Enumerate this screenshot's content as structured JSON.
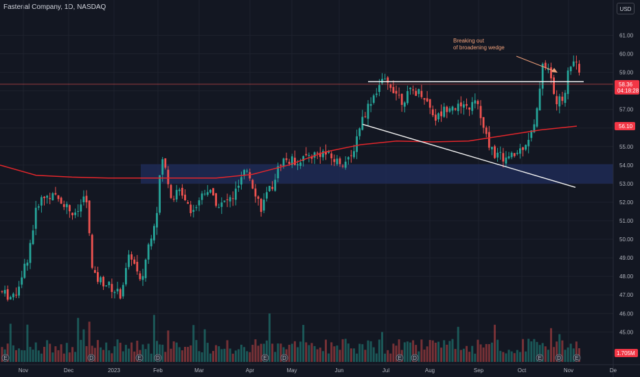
{
  "header": {
    "title": "Fastenal Company, 1D, NASDAQ",
    "currency_button": "USD"
  },
  "colors": {
    "background": "#131722",
    "up": "#26a69a",
    "down": "#ef5350",
    "ma_line": "#e3262b",
    "zone": "#1f2a55",
    "trendline": "#f2f2f2",
    "annotation": "#f0a07a",
    "price_label_bg": "#f23645"
  },
  "chart_data": {
    "type": "candlestick",
    "y_ticks": [
      "61.00",
      "60.00",
      "59.00",
      "58.00",
      "57.00",
      "56.00",
      "55.00",
      "54.00",
      "53.00",
      "52.00",
      "51.00",
      "50.00",
      "49.00",
      "48.00",
      "47.00",
      "46.00",
      "45.00"
    ],
    "x_ticks": [
      "Nov",
      "Dec",
      "2023",
      "Feb",
      "Mar",
      "Apr",
      "May",
      "Jun",
      "Jul",
      "Aug",
      "Sep",
      "Oct",
      "Nov",
      "De"
    ],
    "ylim": [
      44.5,
      62.0
    ],
    "current_price_label": "58.36",
    "countdown_label": "04:18:28",
    "ma_price_label": "56.10",
    "volume_label": "1.705M",
    "annotation_text": [
      "Breaking out",
      "of broadening wedge"
    ],
    "support_zone": {
      "from_price": 53.0,
      "to_price": 54.05
    },
    "resistance_level": 58.5,
    "ma_points": [
      {
        "price": 54.0
      },
      {
        "price": 53.45
      },
      {
        "price": 53.35
      },
      {
        "price": 53.3
      },
      {
        "price": 53.3
      },
      {
        "price": 53.3
      },
      {
        "price": 53.3
      },
      {
        "price": 53.5
      },
      {
        "price": 54.0
      },
      {
        "price": 54.7
      },
      {
        "price": 55.1
      },
      {
        "price": 55.3
      },
      {
        "price": 55.25
      },
      {
        "price": 55.3
      },
      {
        "price": 55.6
      },
      {
        "price": 55.9
      },
      {
        "price": 56.1
      }
    ],
    "event_markers": [
      "E",
      "D",
      "E",
      "D",
      "E",
      "D",
      "E",
      "D",
      "E",
      "D",
      "E"
    ]
  }
}
